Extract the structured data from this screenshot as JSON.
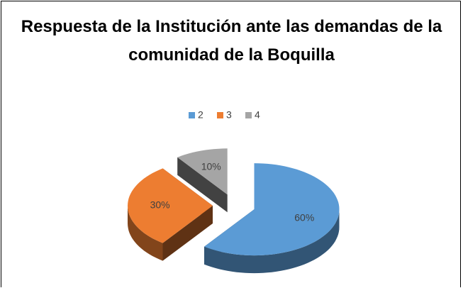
{
  "chart_data": {
    "type": "pie",
    "title": "Respuesta de la Institución ante las demandas de la comunidad de la Boquilla",
    "categories": [
      "2",
      "3",
      "4"
    ],
    "values": [
      60,
      30,
      10
    ],
    "value_labels": [
      "60%",
      "30%",
      "10%"
    ],
    "colors": [
      "#5b9bd5",
      "#ed7d31",
      "#a5a5a5"
    ],
    "legend": "top"
  }
}
